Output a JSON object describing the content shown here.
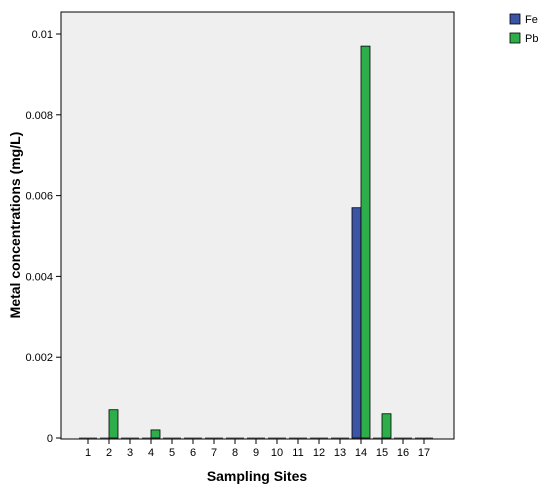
{
  "chart_data": {
    "type": "bar",
    "xlabel": "Sampling Sites",
    "ylabel": "Metal concentrations (mg/L)",
    "ylim": [
      0,
      0.0105
    ],
    "yticks": [
      0,
      0.002,
      0.004,
      0.006,
      0.008,
      0.01
    ],
    "ytick_labels": [
      "0",
      "0.002",
      "0.004",
      "0.006",
      "0.008",
      "0.01"
    ],
    "categories": [
      "1",
      "2",
      "3",
      "4",
      "5",
      "6",
      "7",
      "8",
      "9",
      "10",
      "11",
      "12",
      "13",
      "14",
      "15",
      "16",
      "17"
    ],
    "series": [
      {
        "name": "Fe",
        "color": "#3B54A3",
        "values": [
          0,
          0,
          0,
          0,
          0,
          0,
          0,
          0,
          0,
          0,
          0,
          0,
          0,
          0.0057,
          0,
          0,
          0
        ]
      },
      {
        "name": "Pb",
        "color": "#2EAE4B",
        "values": [
          0,
          0.0007,
          0,
          0.0002,
          0,
          0,
          0,
          0,
          0,
          0,
          0,
          0,
          0,
          0.0097,
          0.0006,
          0,
          0
        ]
      }
    ],
    "legend_position": "top-right",
    "grid": false,
    "plot_background": "#EFEFEF"
  }
}
